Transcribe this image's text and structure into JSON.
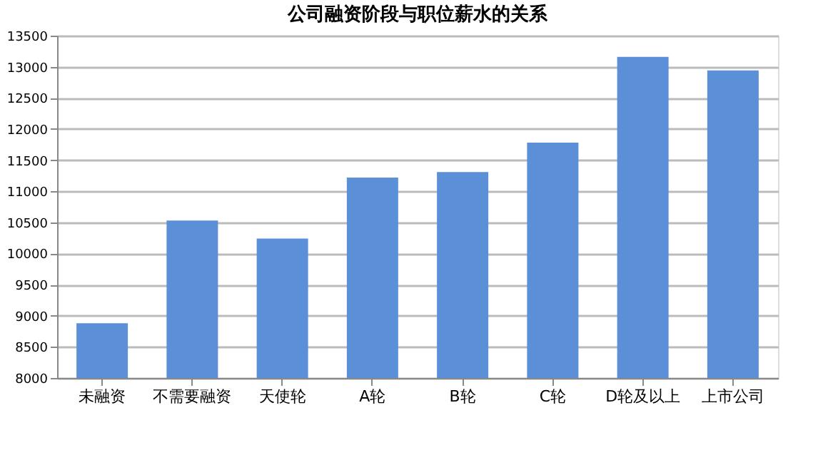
{
  "chart_data": {
    "type": "bar",
    "title": "公司融资阶段与职位薪水的关系",
    "categories": [
      "未融资",
      "不需要融资",
      "天使轮",
      "A轮",
      "B轮",
      "C轮",
      "D轮及以上",
      "上市公司"
    ],
    "values": [
      8880,
      10530,
      10240,
      11220,
      11310,
      11780,
      13160,
      12940
    ],
    "color": "#5b8fd8",
    "ylim": [
      8000,
      13500
    ],
    "yticks": [
      8000,
      8500,
      9000,
      9500,
      10000,
      10500,
      11000,
      11500,
      12000,
      12500,
      13000,
      13500
    ],
    "grid": "y"
  }
}
